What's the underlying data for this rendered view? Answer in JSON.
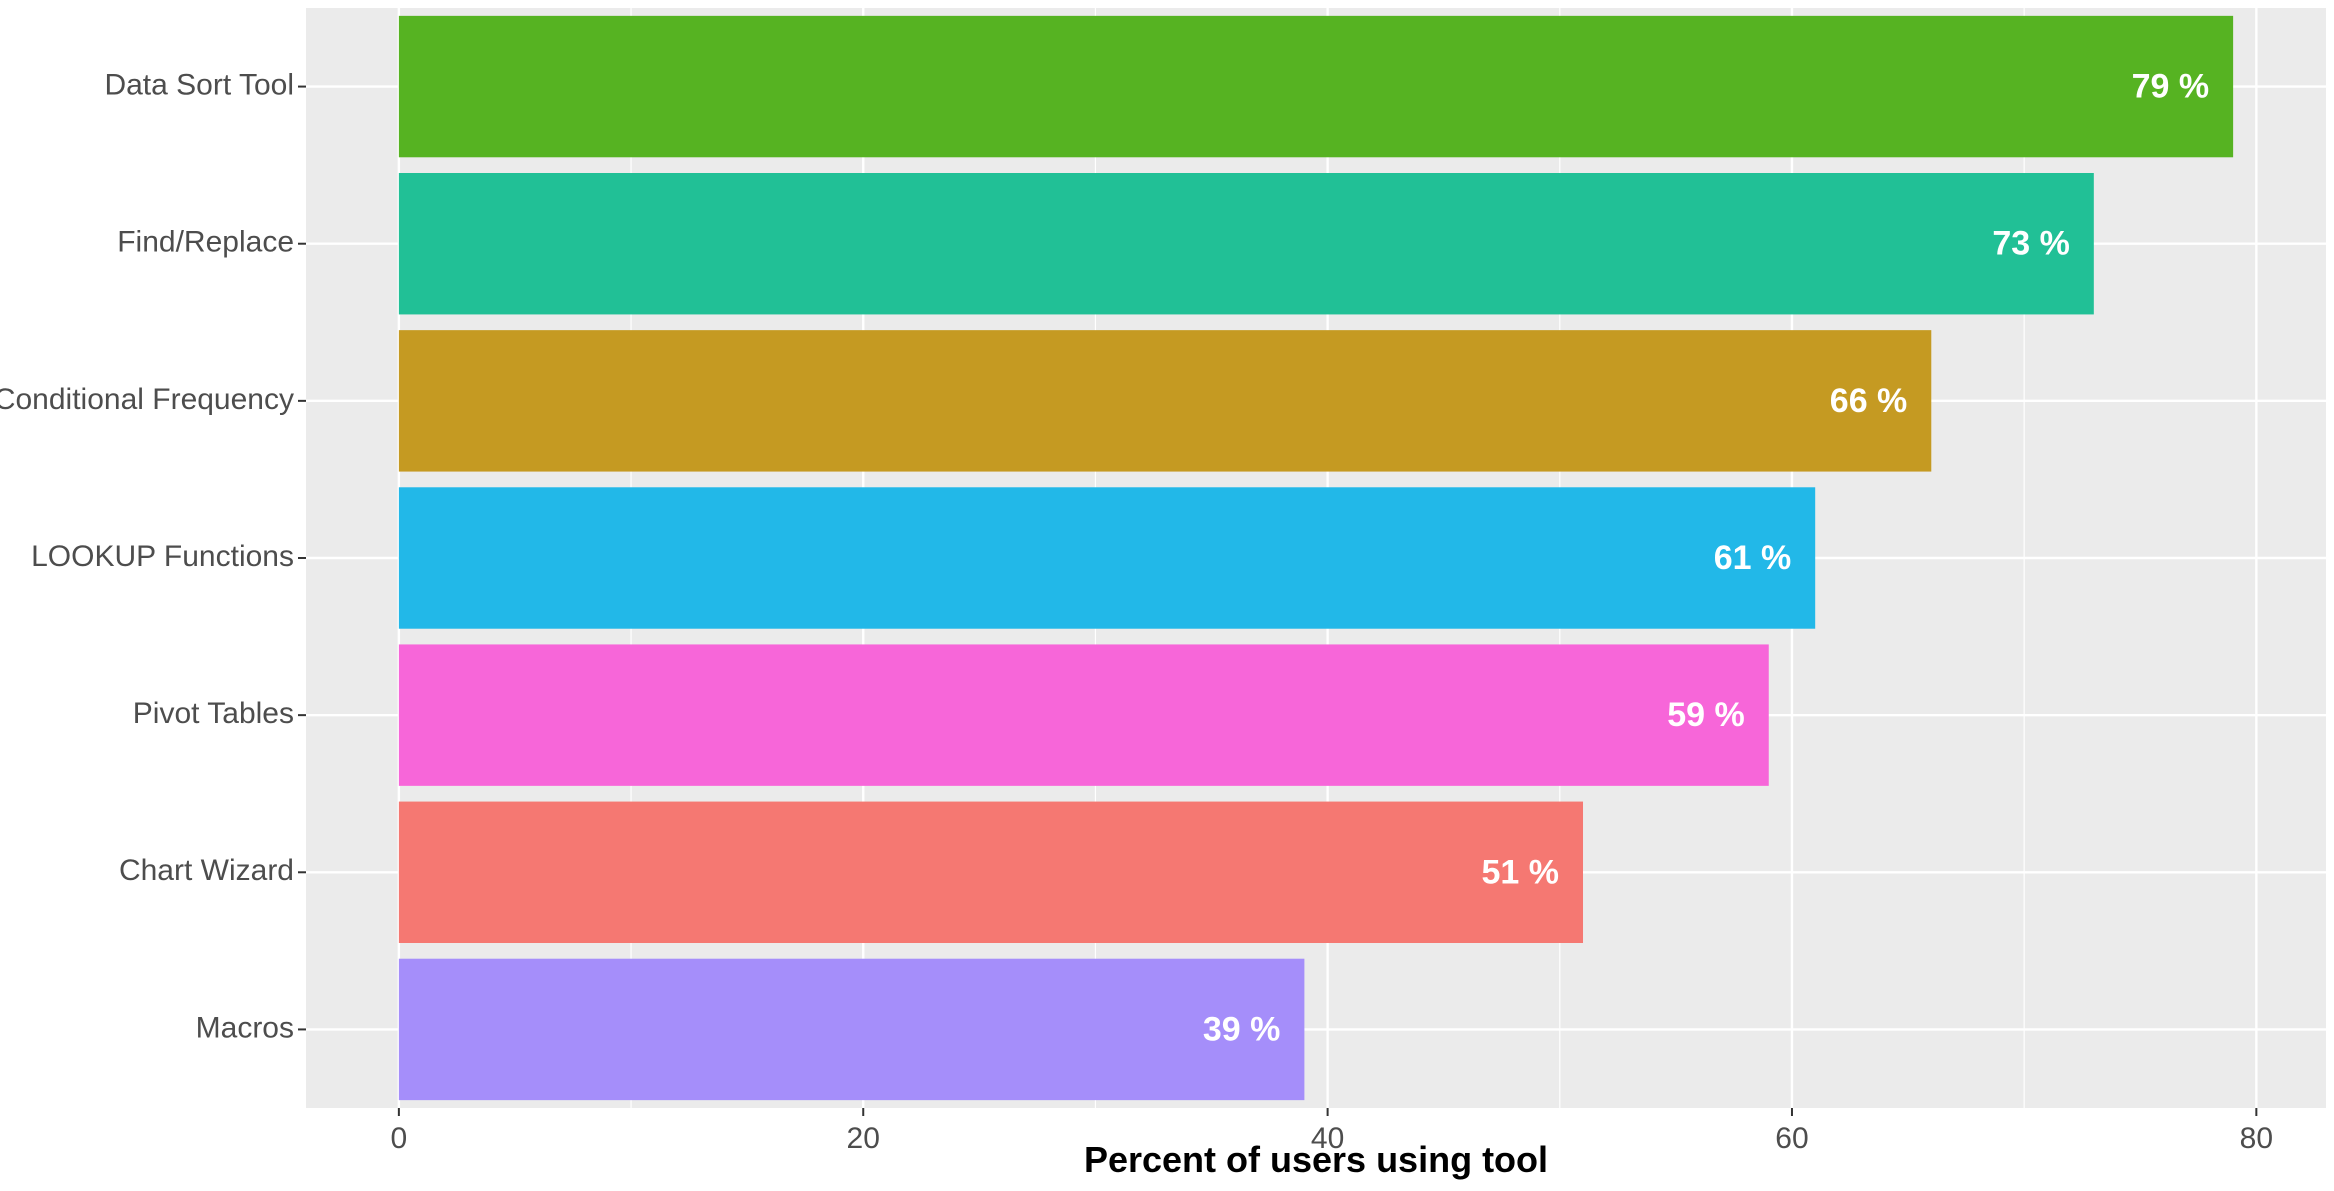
{
  "chart_data": {
    "type": "bar",
    "orientation": "horizontal",
    "categories": [
      "Data Sort Tool",
      "Find/Replace",
      "Conditional Frequency",
      "LOOKUP Functions",
      "Pivot Tables",
      "Chart Wizard",
      "Macros"
    ],
    "values": [
      79,
      73,
      66,
      61,
      59,
      51,
      39
    ],
    "value_labels": [
      "79 %",
      "73 %",
      "66 %",
      "61 %",
      "59 %",
      "51 %",
      "39 %"
    ],
    "colors": [
      "#56B322",
      "#21C096",
      "#C59A22",
      "#22B8E8",
      "#F766D9",
      "#F57872",
      "#A58EFA"
    ],
    "title": "",
    "xlabel": "Percent of users using tool",
    "ylabel": "",
    "xlim": [
      -4,
      83
    ],
    "x_ticks": [
      0,
      20,
      40,
      60,
      80
    ],
    "x_tick_labels": [
      "0",
      "20",
      "40",
      "60",
      "80"
    ],
    "grid": true,
    "legend": "none",
    "panel_color": "#EBEBEB",
    "grid_color": "#FFFFFF"
  }
}
